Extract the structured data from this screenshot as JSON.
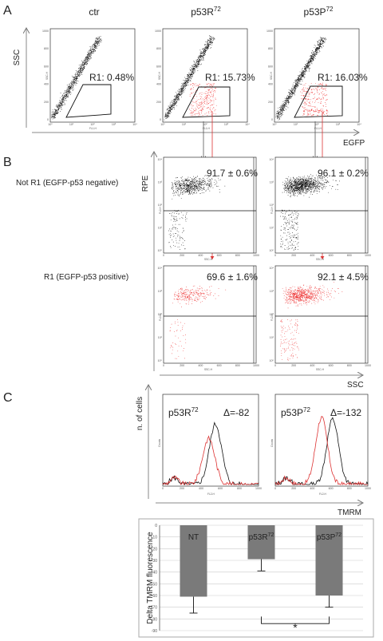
{
  "panel_a": {
    "letter": "A",
    "y_axis_label": "SSC",
    "x_axis_label": "EGFP",
    "plots": [
      {
        "title": "ctr",
        "title_sup": "",
        "gate": "R1: 0.48%",
        "y_tick_label": "SSC-H",
        "x_tick_label": "FL1-H",
        "red_fraction": 0.0
      },
      {
        "title": "p53R",
        "title_sup": "72",
        "gate": "R1: 15.73%",
        "y_tick_label": "SSC-H",
        "x_tick_label": "FL1-H",
        "red_fraction": 0.16
      },
      {
        "title": "p53P",
        "title_sup": "72",
        "gate": "R1: 16.03%",
        "y_tick_label": "SSC-H",
        "x_tick_label": "FL1-H",
        "red_fraction": 0.16
      }
    ],
    "y_ticks": [
      "1000",
      "800",
      "600",
      "400",
      "200",
      "0"
    ],
    "x_ticks": [
      "10⁰",
      "10¹",
      "10²",
      "10³",
      "10⁴"
    ]
  },
  "panel_b": {
    "letter": "B",
    "y_axis_label": "RPE",
    "x_axis_label": "SSC",
    "row_labels": [
      "Not R1 (EGFP-p53 negative)",
      "R1 (EGFP-p53 positive)"
    ],
    "values": [
      [
        "91.7 ± 0.6%",
        "96.1 ± 0.2%"
      ],
      [
        "69.6 ± 1.6%",
        "92.1 ± 4.5%"
      ]
    ],
    "y_tick_label": "FL2-H",
    "x_tick_label": "SSC-H",
    "y_ticks": [
      "10⁴",
      "10³",
      "10²",
      "10¹",
      "10⁰"
    ],
    "x_ticks": [
      "0",
      "200",
      "400",
      "600",
      "800",
      "1000"
    ]
  },
  "panel_c": {
    "letter": "C",
    "y_axis_label": "n. of cells",
    "x_axis_label": "TMRM",
    "histograms": [
      {
        "title": "p53R",
        "title_sup": "72",
        "delta": "Δ=-82"
      },
      {
        "title": "p53P",
        "title_sup": "72",
        "delta": "Δ=-132"
      }
    ],
    "y_tick_label": "Counts",
    "x_tick_label": "FL2-H",
    "x_ticks": [
      "0",
      "200",
      "400",
      "600",
      "800",
      "1000"
    ]
  },
  "chart_data": {
    "type": "bar",
    "ylabel": "Delta TMRM fluorescence",
    "xlabel": "",
    "title": "",
    "categories": [
      "NT",
      "p53R72",
      "p53P72"
    ],
    "category_labels": [
      {
        "text": "NT",
        "sup": ""
      },
      {
        "text": "p53R",
        "sup": "72"
      },
      {
        "text": "p53P",
        "sup": "72"
      }
    ],
    "values": [
      -61,
      -29,
      -60
    ],
    "errors": [
      14,
      10,
      10
    ],
    "ylim": [
      -90,
      0
    ],
    "y_ticks": [
      "0",
      "-10",
      "-20",
      "-30",
      "-40",
      "-50",
      "-60",
      "-70",
      "-80",
      "-90"
    ],
    "grid": true,
    "significance": "*",
    "bar_color": "#7a7a7a"
  }
}
